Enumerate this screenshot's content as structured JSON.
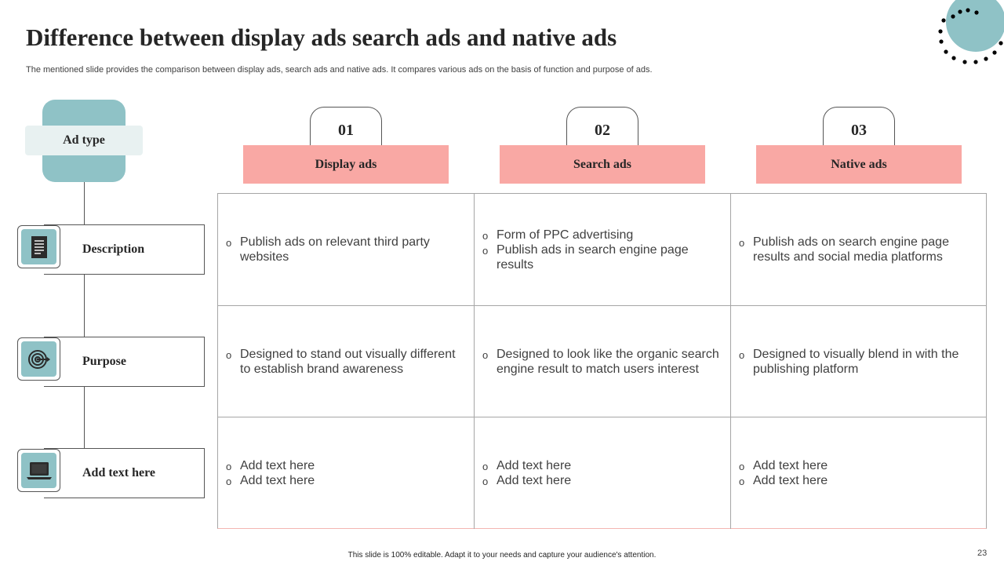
{
  "slide": {
    "title": "Difference between display ads search ads and native ads",
    "subtitle": "The mentioned slide provides the comparison between display ads, search ads and native ads. It compares various ads on the basis of function and purpose of ads.",
    "ad_type_label": "Ad type",
    "rows": [
      {
        "label": "Description",
        "icon": "document-icon"
      },
      {
        "label": "Purpose",
        "icon": "target-icon"
      },
      {
        "label": "Add text here",
        "icon": "laptop-icon"
      }
    ],
    "columns": [
      {
        "number": "01",
        "header": "Display ads"
      },
      {
        "number": "02",
        "header": "Search ads"
      },
      {
        "number": "03",
        "header": "Native ads"
      }
    ],
    "cells": [
      [
        [
          "Publish ads on relevant third party websites"
        ],
        [
          "Form of PPC advertising",
          "Publish ads in search engine page results"
        ],
        [
          "Publish ads on search engine page results and social media platforms"
        ]
      ],
      [
        [
          "Designed to stand out visually different to establish brand awareness"
        ],
        [
          "Designed to look like the organic search engine result to match users interest"
        ],
        [
          "Designed to visually  blend in with the publishing platform"
        ]
      ],
      [
        [
          "Add text here",
          "Add text here"
        ],
        [
          "Add text here",
          "Add text here"
        ],
        [
          "Add text here",
          "Add text here"
        ]
      ]
    ],
    "footer": "This slide is 100% editable. Adapt it to your needs and capture your audience's attention.",
    "page_number": "23"
  },
  "colors": {
    "accent_teal": "#8fc2c6",
    "header_salmon": "#f9a8a4",
    "border_dark": "#555555",
    "grid_border": "#a6a6a6"
  }
}
